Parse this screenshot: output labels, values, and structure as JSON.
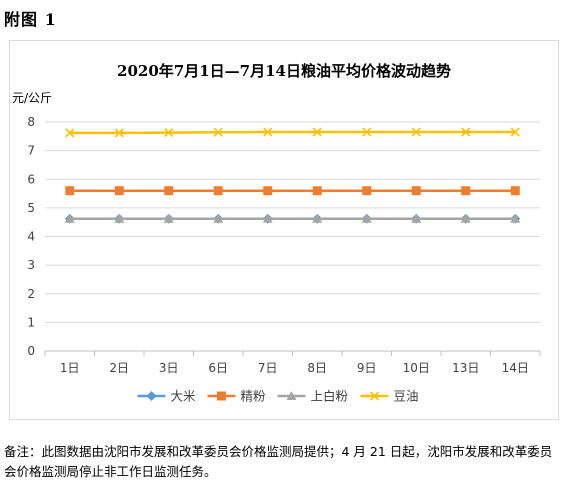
{
  "page": {
    "heading": "附图 1",
    "note": "备注：此图数据由沈阳市发展和改革委员会价格监测局提供；4 月 21 日起，沈阳市发展和改革委员会价格监测局停止非工作日监测任务。"
  },
  "chart_data": {
    "type": "line",
    "title": "2020年7月1日—7月14日粮油平均价格波动趋势",
    "ylabel": "元/公斤",
    "xlabel": "",
    "ylim": [
      0,
      8
    ],
    "yticks": [
      0,
      1,
      2,
      3,
      4,
      5,
      6,
      7,
      8
    ],
    "grid": true,
    "legend_position": "bottom",
    "categories": [
      "1日",
      "2日",
      "3日",
      "6日",
      "7日",
      "8日",
      "9日",
      "10日",
      "13日",
      "14日"
    ],
    "series": [
      {
        "name": "大米",
        "color": "#5b9bd5",
        "marker": "diamond",
        "values": [
          4.62,
          4.62,
          4.62,
          4.62,
          4.62,
          4.62,
          4.62,
          4.62,
          4.62,
          4.62
        ]
      },
      {
        "name": "精粉",
        "color": "#ed7d31",
        "marker": "square",
        "values": [
          5.6,
          5.6,
          5.6,
          5.6,
          5.6,
          5.6,
          5.6,
          5.6,
          5.6,
          5.6
        ]
      },
      {
        "name": "上白粉",
        "color": "#a5a5a5",
        "marker": "triangle",
        "values": [
          4.62,
          4.62,
          4.62,
          4.62,
          4.62,
          4.62,
          4.62,
          4.62,
          4.62,
          4.62
        ]
      },
      {
        "name": "豆油",
        "color": "#ffc000",
        "marker": "x",
        "values": [
          7.62,
          7.62,
          7.63,
          7.64,
          7.65,
          7.65,
          7.65,
          7.65,
          7.65,
          7.65
        ]
      }
    ]
  }
}
